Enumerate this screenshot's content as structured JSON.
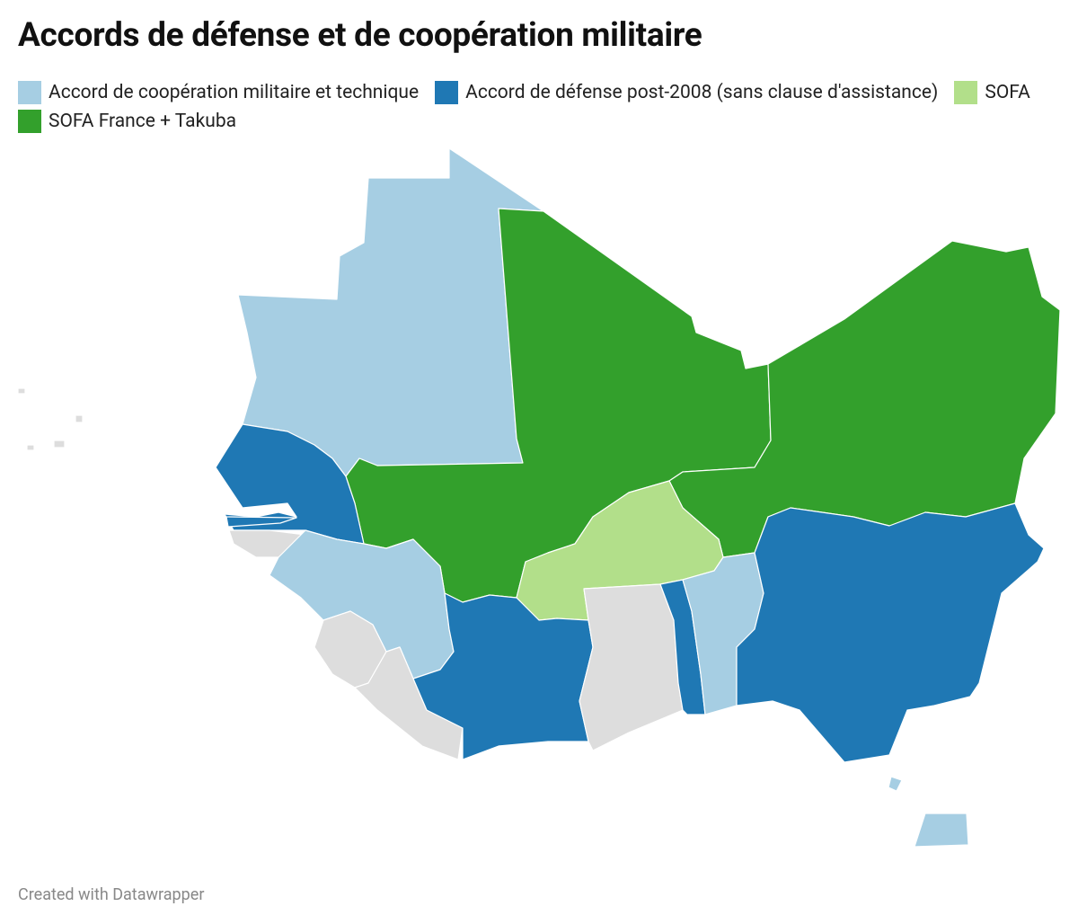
{
  "header": {
    "title": "Accords de défense et de coopération militaire"
  },
  "legend": {
    "items": [
      {
        "label": "Accord de coopération militaire et technique",
        "color": "#a6cee3"
      },
      {
        "label": "Accord de défense post-2008 (sans clause d'assistance)",
        "color": "#1f78b4"
      },
      {
        "label": "SOFA",
        "color": "#b2df8a"
      },
      {
        "label": "SOFA France + Takuba",
        "color": "#33a02c"
      }
    ],
    "no_data_color": "#dddddd"
  },
  "footer": {
    "credit": "Created with Datawrapper"
  }
}
